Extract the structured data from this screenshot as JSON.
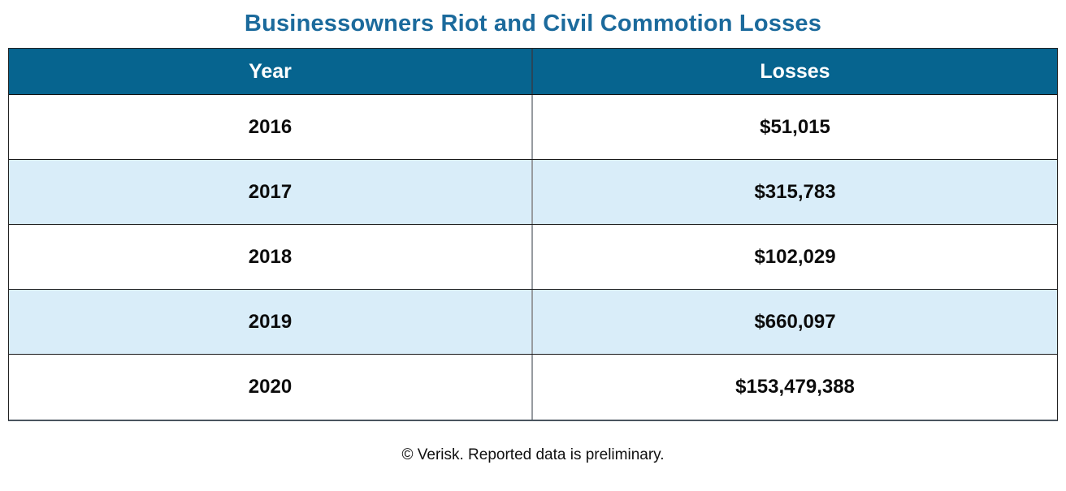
{
  "title": "Businessowners Riot and Civil Commotion Losses",
  "table": {
    "columns": [
      "Year",
      "Losses"
    ],
    "rows": [
      [
        "2016",
        "$51,015"
      ],
      [
        "2017",
        "$315,783"
      ],
      [
        "2018",
        "$102,029"
      ],
      [
        "2019",
        "$660,097"
      ],
      [
        "2020",
        "$153,479,388"
      ]
    ]
  },
  "footer": "© Verisk. Reported data is preliminary.",
  "colors": {
    "header_background": "#06648f",
    "header_text": "#ffffff",
    "stripe_row": "#d9edf9",
    "title_text": "#1b6a9c",
    "column_divider": "#979ba0",
    "row_border": "#1a1a1a"
  },
  "chart_data": {
    "type": "table",
    "title": "Businessowners Riot and Civil Commotion Losses",
    "categories": [
      "2016",
      "2017",
      "2018",
      "2019",
      "2020"
    ],
    "values": [
      51015,
      315783,
      102029,
      660097,
      153479388
    ],
    "xlabel": "Year",
    "ylabel": "Losses"
  }
}
